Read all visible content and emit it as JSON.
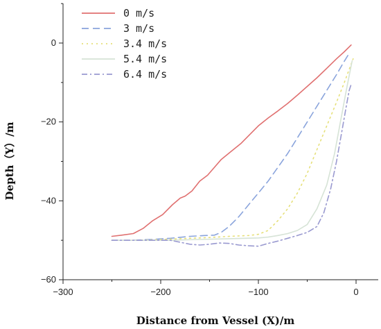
{
  "chart_data": {
    "type": "line",
    "title": "",
    "xlabel": "Distance from Vessel (X)/m",
    "ylabel": "Depth（Y）/m",
    "xlim": [
      -300,
      0
    ],
    "ylim": [
      -60,
      0
    ],
    "xticks": [
      -300,
      -200,
      -100,
      0
    ],
    "yticks": [
      -60,
      -40,
      -20,
      0
    ],
    "xtick_labels": [
      "−300",
      "−200",
      "−100",
      "0"
    ],
    "ytick_labels": [
      "−60",
      "−40",
      "−20",
      "0"
    ],
    "grid": false,
    "legend_position": "top-left",
    "series": [
      {
        "name": "0 m/s",
        "color": "#e07070",
        "dash": "solid",
        "x": [
          -250,
          -240,
          -228,
          -218,
          -208,
          -198,
          -188,
          -180,
          -175,
          -168,
          -160,
          -152,
          -145,
          -138,
          -128,
          -118,
          -108,
          -100,
          -90,
          -80,
          -70,
          -60,
          -50,
          -40,
          -30,
          -20,
          -12,
          -5
        ],
        "y": [
          -49,
          -48.7,
          -48.3,
          -47,
          -45,
          -43.5,
          -41,
          -39.3,
          -38.8,
          -37.5,
          -35,
          -33.5,
          -31.5,
          -29.5,
          -27.5,
          -25.5,
          -23,
          -21,
          -19,
          -17.2,
          -15.3,
          -13.2,
          -11,
          -8.8,
          -6.4,
          -4,
          -2.2,
          -0.5
        ]
      },
      {
        "name": "3 m/s",
        "color": "#8aa4dc",
        "dash": "dashed",
        "x": [
          -250,
          -230,
          -210,
          -190,
          -170,
          -155,
          -145,
          -138,
          -130,
          -120,
          -110,
          -100,
          -90,
          -80,
          -70,
          -60,
          -50,
          -40,
          -30,
          -20,
          -13,
          -8
        ],
        "y": [
          -50,
          -50,
          -49.8,
          -49.5,
          -49,
          -48.8,
          -48.7,
          -48,
          -46.5,
          -44,
          -41,
          -38,
          -35,
          -31.5,
          -28,
          -24,
          -20,
          -16,
          -12,
          -8,
          -5,
          -3
        ]
      },
      {
        "name": "3.4 m/s",
        "color": "#e6e07a",
        "dash": "dotted",
        "x": [
          -250,
          -230,
          -210,
          -190,
          -170,
          -150,
          -130,
          -110,
          -100,
          -90,
          -80,
          -70,
          -60,
          -50,
          -40,
          -30,
          -20,
          -12,
          -6,
          -3
        ],
        "y": [
          -50,
          -50,
          -49.9,
          -49.7,
          -49.5,
          -49.3,
          -49,
          -48.8,
          -48.5,
          -47.5,
          -45,
          -42,
          -38,
          -33,
          -27,
          -21,
          -15,
          -10,
          -6,
          -4
        ]
      },
      {
        "name": "5.4 m/s",
        "color": "#d6e3d6",
        "dash": "solid",
        "x": [
          -250,
          -220,
          -190,
          -160,
          -130,
          -100,
          -90,
          -80,
          -70,
          -60,
          -50,
          -40,
          -30,
          -22,
          -16,
          -10,
          -6,
          -4
        ],
        "y": [
          -50,
          -50,
          -50,
          -49.8,
          -49.6,
          -49.4,
          -49.2,
          -48.8,
          -48.3,
          -47.5,
          -46,
          -42,
          -36,
          -28,
          -20,
          -12,
          -7,
          -4.5
        ]
      },
      {
        "name": "6.4 m/s",
        "color": "#9999d0",
        "dash": "dashdot",
        "x": [
          -250,
          -230,
          -210,
          -190,
          -180,
          -170,
          -160,
          -150,
          -140,
          -130,
          -120,
          -110,
          -100,
          -90,
          -80,
          -70,
          -60,
          -50,
          -40,
          -33,
          -26,
          -20,
          -15,
          -10,
          -7,
          -5
        ],
        "y": [
          -50,
          -50,
          -50,
          -50,
          -50.5,
          -51,
          -51.2,
          -51,
          -50.7,
          -50.8,
          -51.2,
          -51.4,
          -51.5,
          -50.8,
          -50.2,
          -49.5,
          -48.8,
          -48,
          -46.5,
          -43,
          -37,
          -30,
          -23,
          -16,
          -12,
          -10.5
        ]
      }
    ]
  }
}
